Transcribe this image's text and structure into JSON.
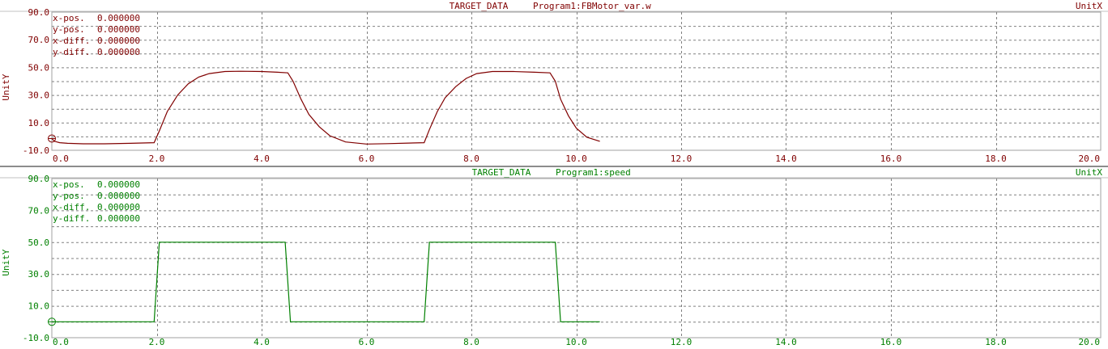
{
  "colors": {
    "top": "#800000",
    "bottom": "#008000",
    "grid": "#808080"
  },
  "chart_data": [
    {
      "type": "line",
      "title_source": "TARGET_DATA",
      "title_variable": "Program1:FBMotor_var.w",
      "xlabel": "UnitX",
      "ylabel": "UnitY",
      "xlim": [
        0,
        20
      ],
      "ylim": [
        -10,
        90
      ],
      "x_ticks": [
        "0.0",
        "2.0",
        "4.0",
        "6.0",
        "8.0",
        "10.0",
        "12.0",
        "14.0",
        "16.0",
        "18.0",
        "20.0"
      ],
      "y_ticks": [
        "90.0",
        "70.0",
        "50.0",
        "30.0",
        "10.0",
        "-10.0"
      ],
      "cursor": [
        {
          "label": "x-pos.",
          "value": "0.000000"
        },
        {
          "label": "y-pos.",
          "value": "0.000000"
        },
        {
          "label": "x-diff.",
          "value": "0.000000"
        },
        {
          "label": "y-diff.",
          "value": "0.000000"
        }
      ],
      "grid": true,
      "series": [
        {
          "x": [
            0,
            0.05,
            0.15,
            0.3,
            0.6,
            1.0,
            1.5,
            1.95,
            2.05,
            2.2,
            2.4,
            2.6,
            2.8,
            3.0,
            3.3,
            3.6,
            4.0,
            4.3,
            4.5,
            4.6,
            4.75,
            4.9,
            5.1,
            5.3,
            5.6,
            6.0,
            6.4,
            6.8,
            7.1,
            7.2,
            7.35,
            7.5,
            7.7,
            7.9,
            8.1,
            8.4,
            8.8,
            9.2,
            9.5,
            9.6,
            9.7,
            9.85,
            10.0,
            10.2,
            10.45
          ],
          "y": [
            -1.5,
            -3.5,
            -4.5,
            -5,
            -5.3,
            -5.3,
            -5,
            -4.5,
            4,
            18,
            30,
            38,
            43,
            45.5,
            47,
            47.2,
            47,
            46.5,
            46,
            40,
            27,
            16,
            7,
            0.5,
            -4,
            -5.5,
            -5.2,
            -4.8,
            -4.5,
            5,
            18,
            28,
            36,
            42,
            45.5,
            47,
            47,
            46.5,
            46,
            40,
            27,
            15,
            6,
            -0.5,
            -3.5
          ]
        }
      ]
    },
    {
      "type": "line",
      "title_source": "TARGET_DATA",
      "title_variable": "Program1:speed",
      "xlabel": "UnitX",
      "ylabel": "UnitY",
      "xlim": [
        0,
        20
      ],
      "ylim": [
        -10,
        90
      ],
      "x_ticks": [
        "0.0",
        "2.0",
        "4.0",
        "6.0",
        "8.0",
        "10.0",
        "12.0",
        "14.0",
        "16.0",
        "18.0",
        "20.0"
      ],
      "y_ticks": [
        "90.0",
        "70.0",
        "50.0",
        "30.0",
        "10.0",
        "-10.0"
      ],
      "cursor": [
        {
          "label": "x-pos.",
          "value": "0.000000"
        },
        {
          "label": "y-pos.",
          "value": "0.000000"
        },
        {
          "label": "x-diff.",
          "value": "0.000000"
        },
        {
          "label": "y-diff.",
          "value": "0.000000"
        }
      ],
      "grid": true,
      "series": [
        {
          "x": [
            0,
            1.95,
            2.05,
            4.45,
            4.55,
            7.1,
            7.2,
            9.6,
            9.7,
            10.45
          ],
          "y": [
            0,
            0,
            50,
            50,
            0,
            0,
            50,
            50,
            0,
            0
          ]
        }
      ]
    }
  ]
}
